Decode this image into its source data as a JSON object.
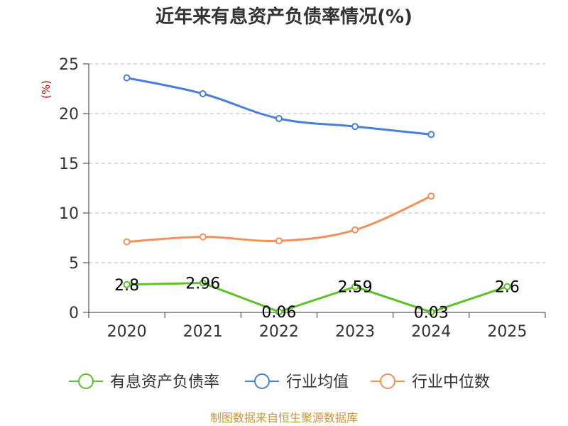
{
  "chart_data": {
    "type": "line",
    "title": "近年来有息资产负债率情况(%)",
    "ylabel": "(%)",
    "xlabel": "",
    "categories": [
      "2020",
      "2021",
      "2022",
      "2023",
      "2024",
      "2025"
    ],
    "ylim": [
      0,
      25
    ],
    "yticks": [
      0,
      5,
      10,
      15,
      20,
      25
    ],
    "grid": true,
    "legend_position": "bottom",
    "series": [
      {
        "name": "有息资产负债率",
        "color": "#5ec12a",
        "values": [
          2.8,
          2.96,
          0.06,
          2.59,
          0.03,
          2.6
        ],
        "labels": [
          "2.8",
          "2.96",
          "0.06",
          "2.59",
          "0.03",
          "2.6"
        ]
      },
      {
        "name": "行业均值",
        "color": "#4a7fd9",
        "values": [
          23.6,
          22.0,
          19.5,
          18.7,
          17.9,
          null
        ]
      },
      {
        "name": "行业中位数",
        "color": "#f5905a",
        "values": [
          7.1,
          7.6,
          7.2,
          8.3,
          11.7,
          null
        ]
      }
    ]
  },
  "source_note": "制图数据来自恒生聚源数据库"
}
